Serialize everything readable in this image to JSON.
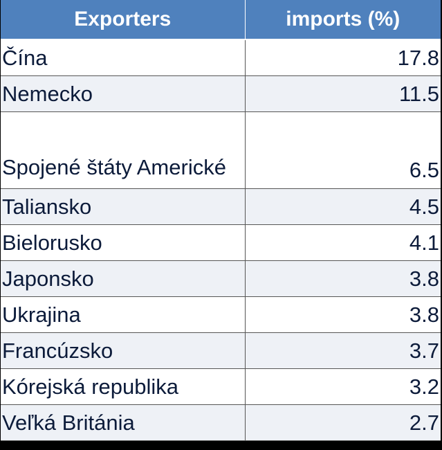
{
  "table": {
    "headers": [
      "Exporters",
      "imports (%)"
    ],
    "rows": [
      {
        "country": "Čína",
        "value": "17.8"
      },
      {
        "country": "Nemecko",
        "value": "11.5"
      },
      {
        "country": "Spojené štáty Americké",
        "value": "6.5"
      },
      {
        "country": "Taliansko",
        "value": "4.5"
      },
      {
        "country": "Bielorusko",
        "value": "4.1"
      },
      {
        "country": "Japonsko",
        "value": "3.8"
      },
      {
        "country": "Ukrajina",
        "value": "3.8"
      },
      {
        "country": "Francúzsko",
        "value": "3.7"
      },
      {
        "country": "Kórejská republika",
        "value": "3.2"
      },
      {
        "country": "Veľká Británia",
        "value": "2.7"
      }
    ]
  },
  "colors": {
    "header_bg": "#4f81bd",
    "header_text": "#ffffff",
    "row_odd": "#ffffff",
    "row_even": "#eef1f6",
    "cell_text": "#0c1b3a",
    "background": "#000000"
  }
}
